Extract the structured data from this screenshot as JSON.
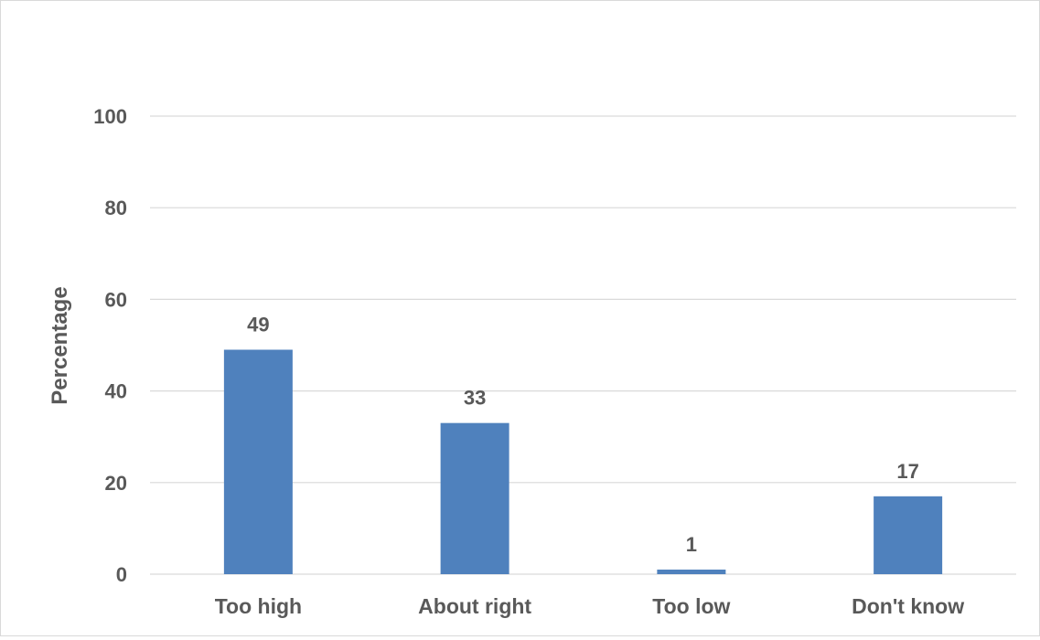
{
  "chart_data": {
    "type": "bar",
    "categories": [
      "Too high",
      "About right",
      "Too low",
      "Don't know"
    ],
    "values": [
      49,
      33,
      1,
      17
    ],
    "data_labels": [
      "49",
      "33",
      "1",
      "17"
    ],
    "title": "",
    "xlabel": "",
    "ylabel": "Percentage",
    "ylim": [
      0,
      100
    ],
    "yticks": [
      0,
      20,
      40,
      60,
      80,
      100
    ],
    "ytick_labels": [
      "0",
      "20",
      "40",
      "60",
      "80",
      "100"
    ],
    "grid": true,
    "legend": "none",
    "colors": {
      "bar": "#4f81bd",
      "grid": "#d9d9d9",
      "text": "#595959",
      "frame": "#d9d9d9"
    }
  }
}
